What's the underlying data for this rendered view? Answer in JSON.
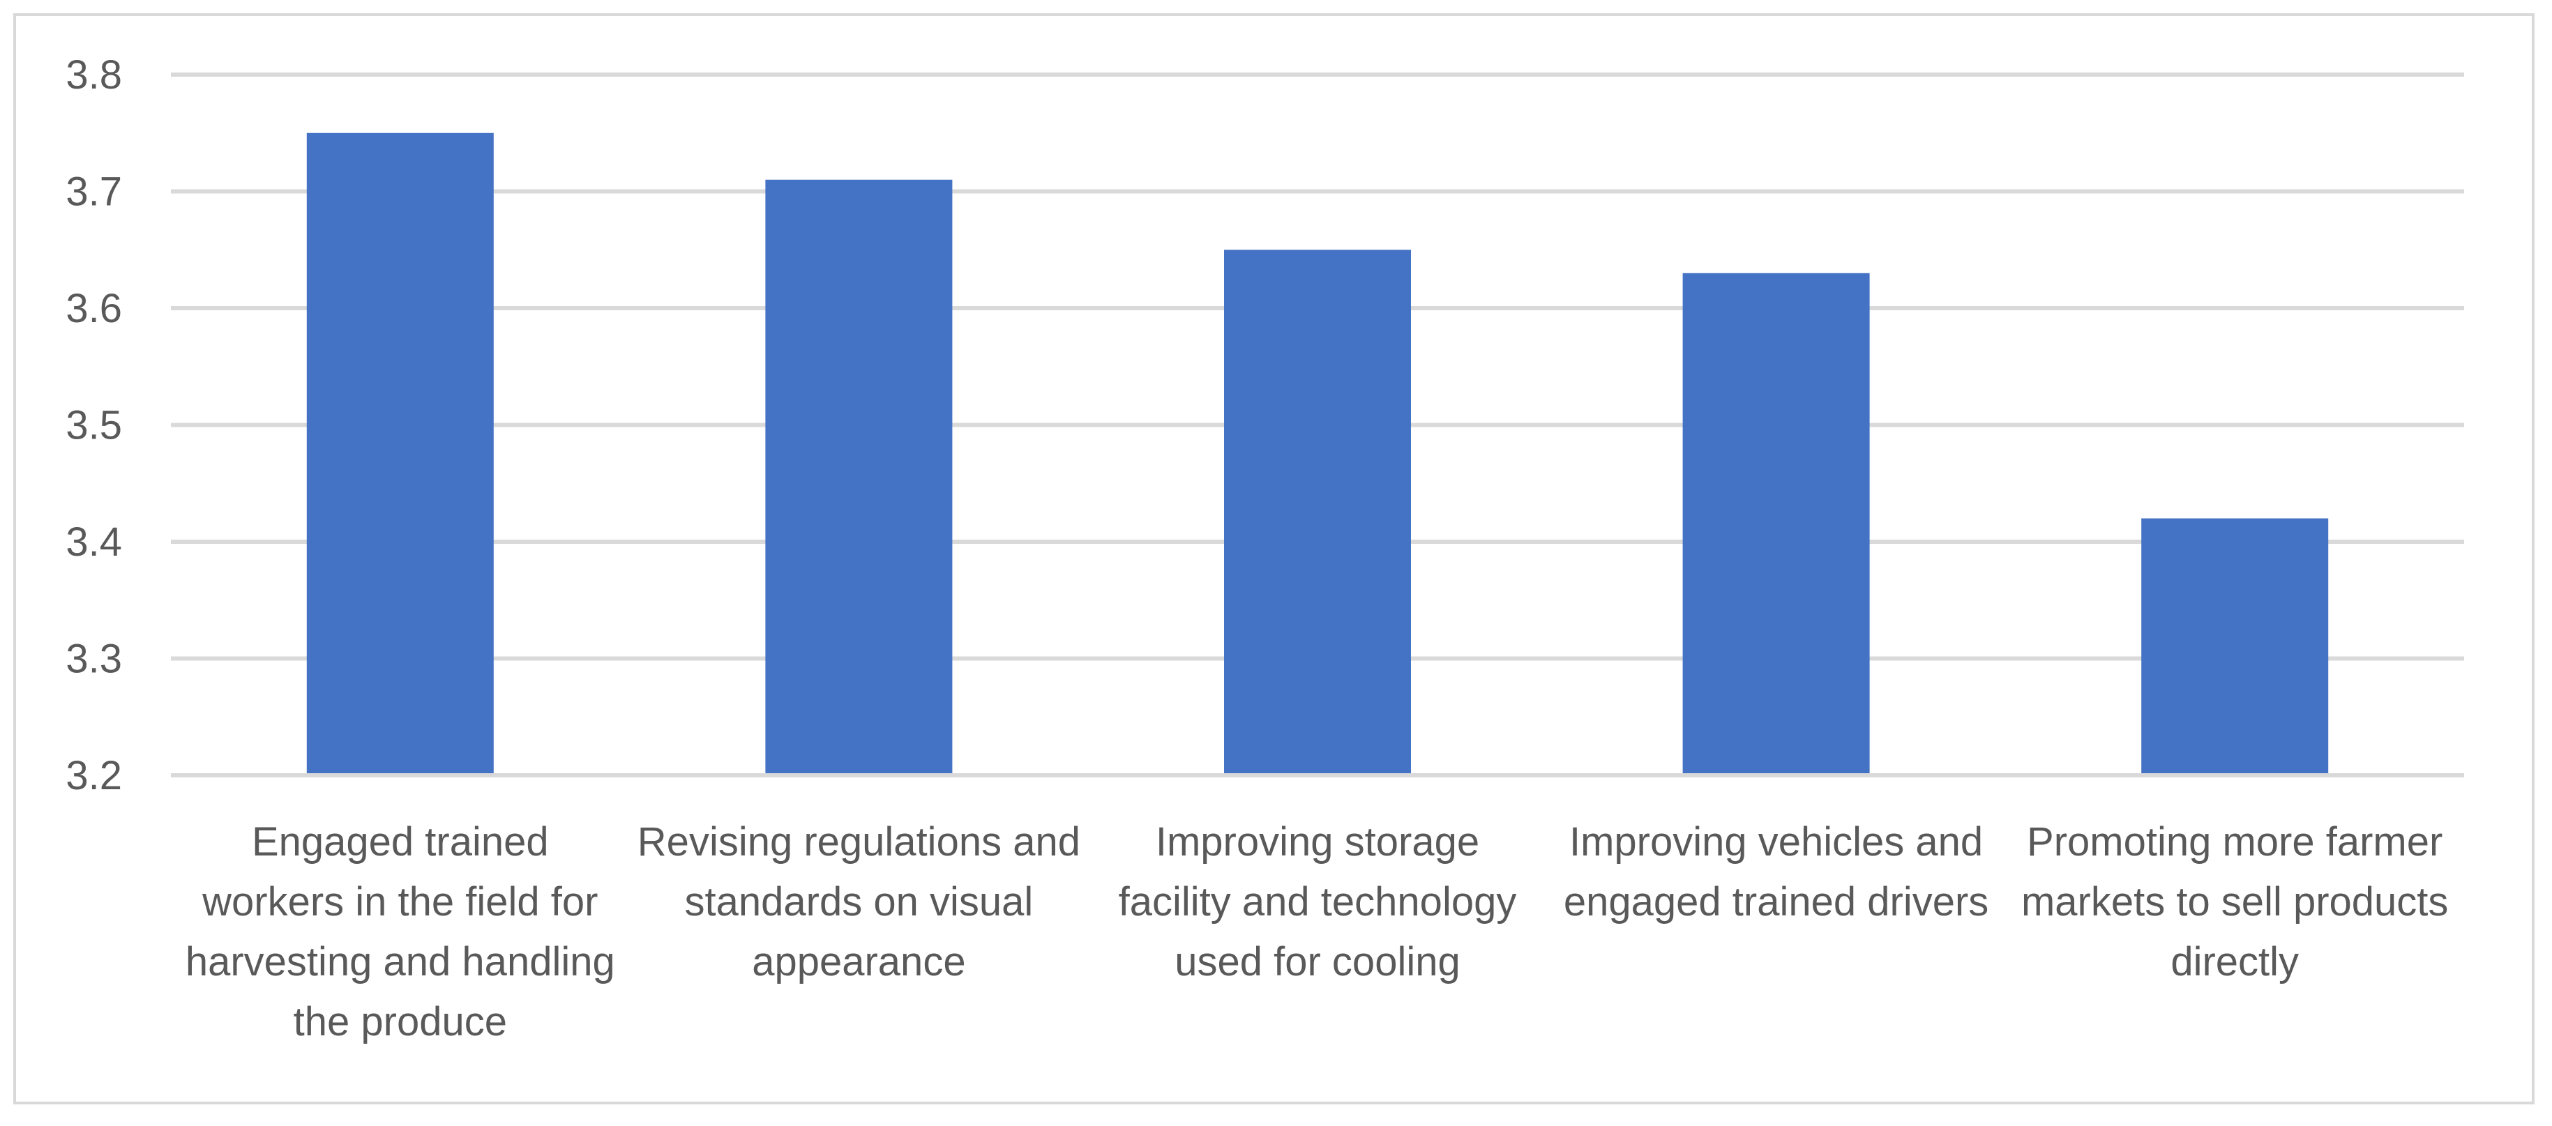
{
  "chart_data": {
    "type": "bar",
    "title": "",
    "xlabel": "",
    "ylabel": "",
    "categories": [
      "Engaged trained workers in the field for harvesting and handling the produce",
      "Revising regulations and standards on visual appearance",
      "Improving storage facility and technology used for cooling",
      "Improving vehicles and engaged trained drivers",
      "Promoting more farmer markets to sell products directly"
    ],
    "values": [
      3.75,
      3.71,
      3.65,
      3.63,
      3.42
    ],
    "ylim": [
      3.2,
      3.8
    ],
    "yticks": [
      "3.2",
      "3.3",
      "3.4",
      "3.5",
      "3.6",
      "3.7",
      "3.8"
    ],
    "grid": true,
    "legend": "none",
    "bar_color": "#4472c4",
    "grid_color": "#d9d9d9"
  }
}
